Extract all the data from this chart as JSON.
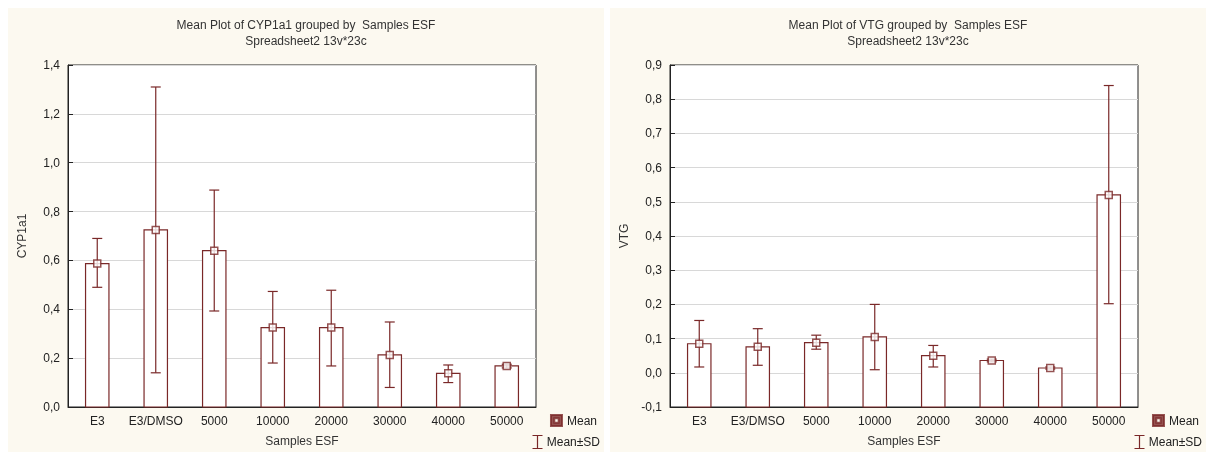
{
  "chart_data": [
    {
      "type": "bar",
      "title": "Mean Plot of CYP1a1 grouped by  Samples ESF",
      "subtitle": "Spreadsheet2 13v*23c",
      "xlabel": "Samples ESF",
      "ylabel": "CYP1a1",
      "categories": [
        "E3",
        "E3/DMSO",
        "5000",
        "10000",
        "20000",
        "30000",
        "40000",
        "50000"
      ],
      "series": [
        {
          "color": "#7a2828",
          "values": [
            0.587,
            0.725,
            0.64,
            0.325,
            0.325,
            0.213,
            0.138,
            0.168
          ]
        },
        {
          "type": "scatter",
          "name": "Mean",
          "color": "#7a2828",
          "values": [
            0.587,
            0.725,
            0.64,
            0.325,
            0.325,
            0.213,
            0.138,
            0.168
          ],
          "errors": [
            [
              0.49,
              0.69
            ],
            [
              0.14,
              1.31
            ],
            [
              0.393,
              0.888
            ],
            [
              0.18,
              0.473
            ],
            [
              0.168,
              0.478
            ],
            [
              0.08,
              0.348
            ],
            [
              0.1,
              0.172
            ],
            [
              0.16,
              0.175
            ]
          ]
        }
      ],
      "annotations": [
        "Mean±SD"
      ],
      "marker": "square",
      "grid": "y",
      "legend": "bottom right",
      "ylim": [
        0,
        1.4
      ],
      "yticks": [
        {
          "value": 0,
          "label": "0,0"
        },
        {
          "value": 0.2,
          "label": "0,2"
        },
        {
          "value": 0.4,
          "label": "0,4"
        },
        {
          "value": 0.6,
          "label": "0,6"
        },
        {
          "value": 0.8,
          "label": "0,8"
        },
        {
          "value": 1.0,
          "label": "1,0"
        },
        {
          "value": 1.2,
          "label": "1,2"
        },
        {
          "value": 1.4,
          "label": "1,4"
        }
      ]
    },
    {
      "type": "bar",
      "title": "Mean Plot of VTG grouped by  Samples ESF",
      "subtitle": "Spreadsheet2 13v*23c",
      "xlabel": "Samples ESF",
      "ylabel": "VTG",
      "categories": [
        "E3",
        "E3/DMSO",
        "5000",
        "10000",
        "20000",
        "30000",
        "40000",
        "50000"
      ],
      "series": [
        {
          "color": "#7a2828",
          "base": [
            -0.1,
            -0.1,
            -0.1,
            -0.1,
            -0.1,
            -0.1,
            -0.1,
            -0.1
          ],
          "values": [
            0.185,
            0.176,
            0.188,
            0.205,
            0.15,
            0.136,
            0.114,
            0.62
          ]
        },
        {
          "type": "scatter",
          "name": "Mean",
          "color": "#7a2828",
          "values": [
            0.085,
            0.076,
            0.088,
            0.105,
            0.05,
            0.036,
            0.014,
            0.52
          ],
          "errors": [
            [
              0.017,
              0.153
            ],
            [
              0.022,
              0.129
            ],
            [
              0.069,
              0.11
            ],
            [
              0.009,
              0.2
            ],
            [
              0.017,
              0.08
            ],
            [
              0.032,
              0.04
            ],
            [
              0.011,
              0.017
            ],
            [
              0.202,
              0.84
            ]
          ]
        }
      ],
      "annotations": [
        "Mean±SD"
      ],
      "marker": "square",
      "grid": "y",
      "legend": "bottom right",
      "ylim": [
        -0.1,
        0.9
      ],
      "yticks": [
        {
          "value": -0.1,
          "label": "-0,1"
        },
        {
          "value": 0,
          "label": "0,0"
        },
        {
          "value": 0.1,
          "label": "0,1"
        },
        {
          "value": 0.2,
          "label": "0,2"
        },
        {
          "value": 0.3,
          "label": "0,3"
        },
        {
          "value": 0.4,
          "label": "0,4"
        },
        {
          "value": 0.5,
          "label": "0,5"
        },
        {
          "value": 0.6,
          "label": "0,6"
        },
        {
          "value": 0.7,
          "label": "0,7"
        },
        {
          "value": 0.8,
          "label": "0,8"
        },
        {
          "value": 0.9,
          "label": "0,9"
        }
      ]
    }
  ]
}
